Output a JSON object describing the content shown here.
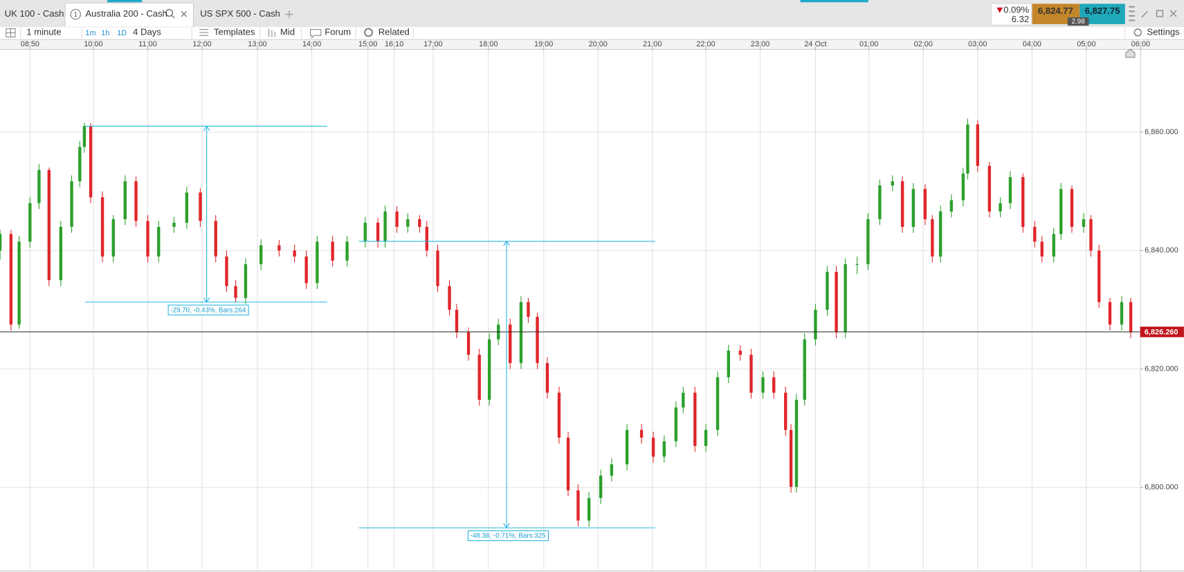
{
  "tabs": [
    "UK 100 - Cash",
    "Australia 200 - Cash",
    "US SPX 500 - Cash"
  ],
  "active_tab": 1,
  "tab_badge": "1",
  "quote": {
    "change_pct": "0.09%",
    "change": "6.32",
    "sell": "6,824.77",
    "buy": "6,827.75",
    "spread": "2.98"
  },
  "toolbar": {
    "interval": "1 minute",
    "periods": [
      "1m",
      "1h",
      "1D"
    ],
    "range": "4 Days",
    "buttons": [
      "Templates",
      "Mid",
      "Forum",
      "Related"
    ],
    "settings": "Settings"
  },
  "chart_data": {
    "type": "candlestick",
    "xlim": [
      0,
      1260
    ],
    "xticks": [
      {
        "value": 33,
        "label": "08:50"
      },
      {
        "value": 103,
        "label": "10:00"
      },
      {
        "value": 163,
        "label": "11:00"
      },
      {
        "value": 223,
        "label": "12:00"
      },
      {
        "value": 284,
        "label": "13:00"
      },
      {
        "value": 344,
        "label": "14:00"
      },
      {
        "value": 406,
        "label": "15:00"
      },
      {
        "value": 435,
        "label": "16:10"
      },
      {
        "value": 478,
        "label": "17:00"
      },
      {
        "value": 539,
        "label": "18:00"
      },
      {
        "value": 600,
        "label": "19:00"
      },
      {
        "value": 660,
        "label": "20:00"
      },
      {
        "value": 720,
        "label": "21:00"
      },
      {
        "value": 779,
        "label": "22:00"
      },
      {
        "value": 839,
        "label": "23:00"
      },
      {
        "value": 900,
        "label": "24 Oct"
      },
      {
        "value": 959,
        "label": "01:00"
      },
      {
        "value": 1019,
        "label": "02:00"
      },
      {
        "value": 1079,
        "label": "03:00"
      },
      {
        "value": 1139,
        "label": "04:00"
      },
      {
        "value": 1199,
        "label": "05:00"
      },
      {
        "value": 1259,
        "label": "06:00"
      }
    ],
    "ylim": [
      6786.1,
      6873.9
    ],
    "yticks": [
      {
        "value": 6800,
        "label": "6,800.000"
      },
      {
        "value": 6820,
        "label": "6,820.000"
      },
      {
        "value": 6840,
        "label": "6,840.000"
      },
      {
        "value": 6860,
        "label": "6,860.000"
      }
    ],
    "grid": true,
    "up_color": "#2ca02c",
    "down_color": "#e0262b",
    "candles": [
      [
        0,
        6840.0,
        6843.5,
        6838.5,
        6842.8
      ],
      [
        12,
        6842.8,
        6843.5,
        6826.5,
        6827.5
      ],
      [
        21,
        6827.5,
        6842.5,
        6826.8,
        6841.5
      ],
      [
        33,
        6841.5,
        6849.0,
        6840.5,
        6848.0
      ],
      [
        43,
        6848.0,
        6854.6,
        6847.0,
        6853.6
      ],
      [
        54,
        6853.6,
        6854.0,
        6834.0,
        6835.0
      ],
      [
        67,
        6835.0,
        6845.0,
        6834.0,
        6844.0
      ],
      [
        79,
        6844.0,
        6852.7,
        6843.0,
        6851.7
      ],
      [
        88,
        6851.7,
        6858.5,
        6850.7,
        6857.5
      ],
      [
        93,
        6857.5,
        6861.6,
        6856.5,
        6861.0
      ],
      [
        100,
        6861.0,
        6861.5,
        6848.0,
        6849.0
      ],
      [
        113,
        6849.0,
        6850.0,
        6838.0,
        6839.0
      ],
      [
        125,
        6839.0,
        6846.0,
        6838.0,
        6845.3
      ],
      [
        138,
        6845.3,
        6852.7,
        6844.3,
        6851.7
      ],
      [
        150,
        6851.7,
        6852.5,
        6844.0,
        6845.0
      ],
      [
        163,
        6845.0,
        6846.0,
        6838.0,
        6839.0
      ],
      [
        175,
        6839.0,
        6845.0,
        6838.0,
        6844.0
      ],
      [
        192,
        6844.0,
        6845.7,
        6843.0,
        6844.7
      ],
      [
        206,
        6844.7,
        6850.8,
        6843.7,
        6849.8
      ],
      [
        221,
        6849.8,
        6850.5,
        6844.0,
        6845.0
      ],
      [
        238,
        6845.0,
        6846.0,
        6838.0,
        6839.0
      ],
      [
        250,
        6839.0,
        6840.0,
        6833.0,
        6834.0
      ],
      [
        260,
        6834.0,
        6835.0,
        6831.3,
        6832.0
      ],
      [
        271,
        6832.0,
        6838.7,
        6831.0,
        6837.7
      ],
      [
        288,
        6837.7,
        6841.9,
        6836.7,
        6840.9
      ],
      [
        308,
        6840.9,
        6841.8,
        6839.0,
        6840.0
      ],
      [
        325,
        6840.0,
        6841.0,
        6838.0,
        6839.0
      ],
      [
        338,
        6839.0,
        6840.0,
        6833.5,
        6834.5
      ],
      [
        350,
        6834.5,
        6842.5,
        6833.5,
        6841.5
      ],
      [
        367,
        6841.5,
        6842.5,
        6837.3,
        6838.3
      ],
      [
        383,
        6838.3,
        6842.5,
        6837.3,
        6841.5
      ],
      [
        403,
        6841.5,
        6845.7,
        6840.5,
        6844.7
      ],
      [
        417,
        6844.7,
        6845.5,
        6840.5,
        6841.5
      ],
      [
        425,
        6841.5,
        6847.6,
        6840.5,
        6846.6
      ],
      [
        438,
        6846.6,
        6847.5,
        6843.0,
        6844.0
      ],
      [
        450,
        6844.0,
        6846.3,
        6843.0,
        6845.3
      ],
      [
        463,
        6845.3,
        6846.0,
        6843.0,
        6844.0
      ],
      [
        471,
        6844.0,
        6845.0,
        6839.0,
        6840.0
      ],
      [
        483,
        6840.0,
        6841.0,
        6833.0,
        6834.0
      ],
      [
        496,
        6834.0,
        6835.0,
        6829.0,
        6830.0
      ],
      [
        504,
        6830.0,
        6831.0,
        6825.2,
        6826.2
      ],
      [
        517,
        6826.2,
        6827.0,
        6821.4,
        6822.4
      ],
      [
        529,
        6822.4,
        6823.4,
        6813.8,
        6814.8
      ],
      [
        540,
        6814.8,
        6826.0,
        6813.8,
        6825.0
      ],
      [
        550,
        6825.0,
        6828.5,
        6824.0,
        6827.5
      ],
      [
        563,
        6827.5,
        6828.5,
        6820.0,
        6821.0
      ],
      [
        575,
        6821.0,
        6832.3,
        6820.0,
        6831.3
      ],
      [
        583,
        6831.3,
        6832.0,
        6827.8,
        6828.8
      ],
      [
        593,
        6828.8,
        6829.5,
        6820.0,
        6821.0
      ],
      [
        604,
        6821.0,
        6822.0,
        6815.0,
        6816.0
      ],
      [
        617,
        6816.0,
        6817.0,
        6807.4,
        6808.4
      ],
      [
        627,
        6808.4,
        6809.4,
        6798.5,
        6799.5
      ],
      [
        638,
        6799.5,
        6800.5,
        6793.4,
        6794.4
      ],
      [
        650,
        6794.4,
        6799.2,
        6793.4,
        6798.2
      ],
      [
        663,
        6798.2,
        6803.0,
        6797.2,
        6802.0
      ],
      [
        675,
        6802.0,
        6804.9,
        6801.0,
        6803.9
      ],
      [
        692,
        6803.9,
        6810.7,
        6802.9,
        6809.7
      ],
      [
        708,
        6809.7,
        6810.7,
        6807.4,
        6808.4
      ],
      [
        721,
        6808.4,
        6809.4,
        6804.2,
        6805.2
      ],
      [
        733,
        6805.2,
        6808.8,
        6804.2,
        6807.8
      ],
      [
        746,
        6807.8,
        6814.5,
        6806.8,
        6813.5
      ],
      [
        754,
        6813.5,
        6817.0,
        6812.5,
        6816.0
      ],
      [
        767,
        6816.0,
        6817.0,
        6806.0,
        6807.0
      ],
      [
        779,
        6807.0,
        6810.7,
        6806.0,
        6809.7
      ],
      [
        792,
        6809.7,
        6819.6,
        6808.7,
        6818.6
      ],
      [
        804,
        6818.6,
        6824.1,
        6817.6,
        6823.1
      ],
      [
        817,
        6823.1,
        6824.0,
        6821.4,
        6822.4
      ],
      [
        829,
        6822.4,
        6823.4,
        6815.0,
        6816.0
      ],
      [
        842,
        6816.0,
        6819.6,
        6815.0,
        6818.6
      ],
      [
        854,
        6818.6,
        6819.6,
        6815.0,
        6816.0
      ],
      [
        867,
        6816.0,
        6817.0,
        6808.7,
        6809.7
      ],
      [
        873,
        6809.7,
        6810.7,
        6799.1,
        6800.1
      ],
      [
        879,
        6800.1,
        6815.8,
        6799.1,
        6814.8
      ],
      [
        888,
        6814.8,
        6826.0,
        6813.8,
        6825.0
      ],
      [
        900,
        6825.0,
        6831.0,
        6824.0,
        6830.0
      ],
      [
        913,
        6830.0,
        6837.4,
        6829.0,
        6836.4
      ],
      [
        923,
        6836.4,
        6837.4,
        6825.2,
        6826.2
      ],
      [
        933,
        6826.2,
        6838.7,
        6825.2,
        6837.7
      ],
      [
        946,
        6837.7,
        6839.0,
        6836.0,
        6837.7
      ],
      [
        958,
        6837.7,
        6846.3,
        6836.7,
        6845.3
      ],
      [
        971,
        6845.3,
        6852.0,
        6844.3,
        6851.0
      ],
      [
        985,
        6851.0,
        6852.7,
        6850.0,
        6851.7
      ],
      [
        996,
        6851.7,
        6852.5,
        6843.0,
        6844.0
      ],
      [
        1008,
        6844.0,
        6851.4,
        6843.0,
        6850.4
      ],
      [
        1021,
        6850.4,
        6851.2,
        6844.3,
        6845.3
      ],
      [
        1029,
        6845.3,
        6846.0,
        6838.0,
        6839.0
      ],
      [
        1038,
        6839.0,
        6847.6,
        6838.0,
        6846.6
      ],
      [
        1050,
        6846.6,
        6849.5,
        6845.6,
        6848.5
      ],
      [
        1063,
        6848.5,
        6854.0,
        6847.5,
        6853.0
      ],
      [
        1068,
        6853.0,
        6862.3,
        6852.0,
        6861.3
      ],
      [
        1079,
        6861.3,
        6862.0,
        6853.3,
        6854.3
      ],
      [
        1092,
        6854.3,
        6855.0,
        6845.6,
        6846.6
      ],
      [
        1104,
        6846.6,
        6849.0,
        6845.6,
        6848.0
      ],
      [
        1115,
        6848.0,
        6853.4,
        6847.0,
        6852.4
      ],
      [
        1129,
        6852.4,
        6853.0,
        6843.0,
        6844.0
      ],
      [
        1142,
        6844.0,
        6845.0,
        6840.5,
        6841.5
      ],
      [
        1150,
        6841.5,
        6842.5,
        6838.0,
        6839.0
      ],
      [
        1163,
        6839.0,
        6843.8,
        6838.0,
        6842.8
      ],
      [
        1171,
        6842.8,
        6851.4,
        6841.8,
        6850.4
      ],
      [
        1183,
        6850.4,
        6851.0,
        6843.0,
        6844.0
      ],
      [
        1196,
        6844.0,
        6846.3,
        6843.0,
        6845.3
      ],
      [
        1204,
        6845.3,
        6846.0,
        6839.0,
        6840.0
      ],
      [
        1213,
        6840.0,
        6841.0,
        6830.3,
        6831.3
      ],
      [
        1225,
        6831.3,
        6832.0,
        6826.5,
        6827.5
      ],
      [
        1238,
        6827.5,
        6832.3,
        6826.5,
        6831.3
      ],
      [
        1248,
        6831.3,
        6832.0,
        6825.2,
        6826.2
      ]
    ],
    "last": {
      "value": 6826.26,
      "label": "6,826.260"
    },
    "measures": [
      {
        "from": 6861.0,
        "to": 6831.3,
        "x_start": 94,
        "x_end": 361,
        "x_arrow": 228,
        "label": "-29.70, -0.43%, Bars:264"
      },
      {
        "from": 6841.56,
        "to": 6793.18,
        "x_start": 396,
        "x_end": 723,
        "x_arrow": 559,
        "label": "-48.38, -0.71%, Bars:325"
      }
    ]
  }
}
